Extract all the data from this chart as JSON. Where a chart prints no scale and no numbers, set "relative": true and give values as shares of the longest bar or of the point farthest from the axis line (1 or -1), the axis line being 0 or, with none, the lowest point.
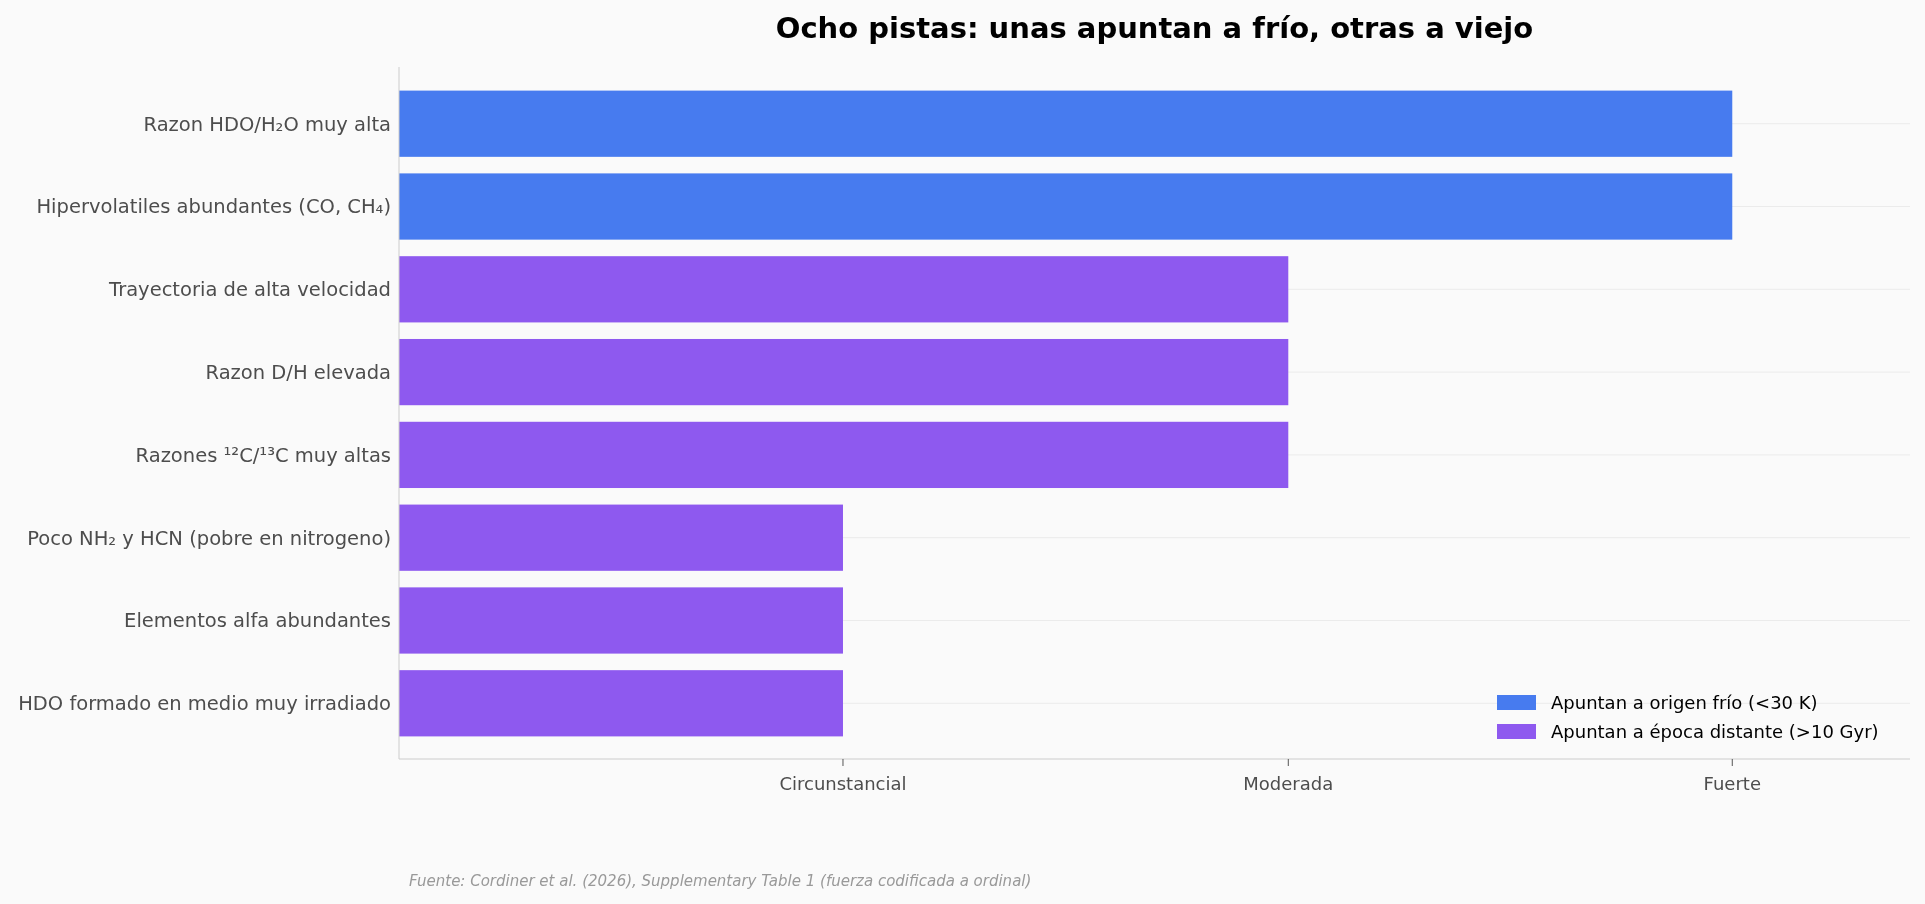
{
  "chart_data": {
    "type": "bar",
    "orientation": "horizontal",
    "title": "Ocho pistas: unas apuntan a frío, otras a viejo",
    "categories": [
      "Razon HDO/H₂O muy alta",
      "Hipervolatiles abundantes (CO, CH₄)",
      "Trayectoria de alta velocidad",
      "Razon D/H elevada",
      "Razones ¹²C/¹³C muy altas",
      "Poco NH₂ y HCN (pobre en nitrogeno)",
      "Elementos alfa abundantes",
      "HDO formado en medio muy irradiado"
    ],
    "series": [
      {
        "name": "Apuntan a origen frío (<30 K)",
        "color": "#477bef",
        "values": [
          1,
          1,
          null,
          null,
          null,
          null,
          null,
          null
        ]
      },
      {
        "name": "Apuntan a época distante (>10 Gyr)",
        "color": "#8e59ef",
        "values": [
          null,
          null,
          0.667,
          0.667,
          0.667,
          0.333,
          0.333,
          0.333
        ]
      }
    ],
    "relative": true,
    "grid": "y",
    "legend": "bottom right",
    "annotations": [
      {
        "text": "Circunstancial",
        "x": 0.333
      },
      {
        "text": "Moderada",
        "x": 0.667
      },
      {
        "text": "Fuerte",
        "x": 1
      },
      "Fuente: Cordiner et al. (2026), Supplementary Table 1 (fuerza codificada a ordinal)"
    ]
  }
}
